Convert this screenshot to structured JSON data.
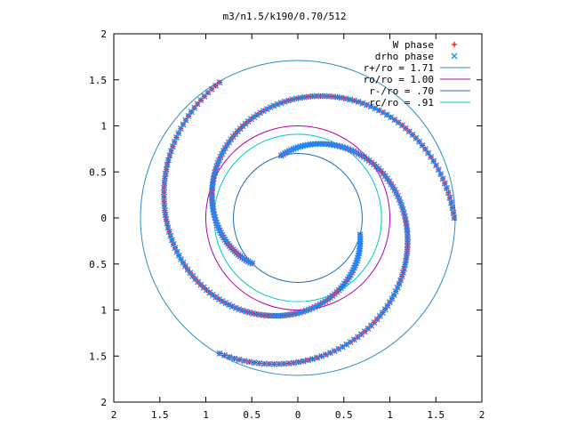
{
  "chart_data": {
    "type": "scatter",
    "title": "m3/n1.5/k190/0.70/512",
    "xlabel": "",
    "ylabel": "",
    "xlim": [
      -2,
      2
    ],
    "ylim": [
      -2,
      2
    ],
    "grid": false,
    "legend_position": "top-right",
    "x_ticks": [
      -2,
      -1.5,
      -1,
      -0.5,
      0,
      0.5,
      1,
      1.5,
      2
    ],
    "y_ticks": [
      -2,
      -1.5,
      -1,
      -0.5,
      0,
      0.5,
      1,
      1.5,
      2
    ],
    "x_tick_labels": [
      "2",
      "1.5",
      "1",
      "0.5",
      "0",
      "0.5",
      "1",
      "1.5",
      "2"
    ],
    "y_tick_labels": [
      "2",
      "1.5",
      "1",
      "0.5",
      "0",
      "0.5",
      "1",
      "1.5",
      "2"
    ],
    "series": [
      {
        "name": "W phase",
        "kind": "points",
        "marker": "plus",
        "color": "#ff0000",
        "arms": [
          {
            "r_start": 1.7,
            "r_end": 0.7,
            "theta_start": 0,
            "theta_end": 225,
            "n": 120
          },
          {
            "r_start": 1.7,
            "r_end": 0.7,
            "theta_start": 120,
            "theta_end": 345,
            "n": 120
          },
          {
            "r_start": 1.7,
            "r_end": 0.7,
            "theta_start": 240,
            "theta_end": 465,
            "n": 120
          }
        ]
      },
      {
        "name": "drho phase",
        "kind": "points",
        "marker": "cross",
        "color": "#1a8cff",
        "arms": [
          {
            "r_start": 1.7,
            "r_end": 0.7,
            "theta_start": 0,
            "theta_end": 225,
            "n": 120
          },
          {
            "r_start": 1.7,
            "r_end": 0.7,
            "theta_start": 120,
            "theta_end": 345,
            "n": 120
          },
          {
            "r_start": 1.7,
            "r_end": 0.7,
            "theta_start": 240,
            "theta_end": 465,
            "n": 120
          }
        ]
      },
      {
        "name": "r+/ro = 1.71",
        "kind": "circle",
        "radius": 1.71,
        "color": "#2f8cc4"
      },
      {
        "name": "ro/ro = 1.00",
        "kind": "circle",
        "radius": 1.0,
        "color": "#b000b0"
      },
      {
        "name": "r-/ro = .70",
        "kind": "circle",
        "radius": 0.7,
        "color": "#1f6fb8"
      },
      {
        "name": "rc/ro = .91",
        "kind": "circle",
        "radius": 0.91,
        "color": "#00c8c8"
      }
    ]
  }
}
